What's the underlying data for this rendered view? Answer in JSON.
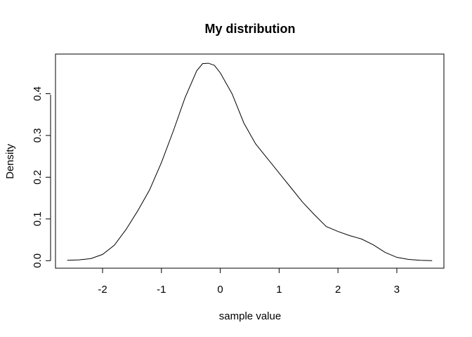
{
  "chart_data": {
    "type": "line",
    "title": "My distribution",
    "xlabel": "sample value",
    "ylabel": "Density",
    "xlim": [
      -2.8,
      3.8
    ],
    "ylim": [
      -0.018,
      0.495
    ],
    "x_ticks": [
      -2,
      -1,
      0,
      1,
      2,
      3
    ],
    "y_ticks": [
      0.0,
      0.1,
      0.2,
      0.3,
      0.4
    ],
    "x_tick_labels": [
      "-2",
      "-1",
      "0",
      "1",
      "2",
      "3"
    ],
    "y_tick_labels": [
      "0.0",
      "0.1",
      "0.2",
      "0.3",
      "0.4"
    ],
    "grid": false,
    "legend": "none",
    "series": [
      {
        "x": [
          -2.6,
          -2.4,
          -2.2,
          -2.0,
          -1.8,
          -1.6,
          -1.4,
          -1.2,
          -1.0,
          -0.8,
          -0.6,
          -0.4,
          -0.3,
          -0.2,
          -0.1,
          0.0,
          0.2,
          0.4,
          0.6,
          0.8,
          1.0,
          1.2,
          1.4,
          1.6,
          1.8,
          2.0,
          2.2,
          2.4,
          2.6,
          2.8,
          3.0,
          3.2,
          3.4,
          3.6
        ],
        "values": [
          0.001,
          0.002,
          0.005,
          0.015,
          0.037,
          0.075,
          0.12,
          0.17,
          0.235,
          0.31,
          0.39,
          0.455,
          0.472,
          0.473,
          0.468,
          0.45,
          0.4,
          0.33,
          0.28,
          0.245,
          0.21,
          0.175,
          0.14,
          0.11,
          0.082,
          0.07,
          0.06,
          0.052,
          0.038,
          0.02,
          0.008,
          0.003,
          0.001,
          0.0
        ]
      }
    ]
  }
}
